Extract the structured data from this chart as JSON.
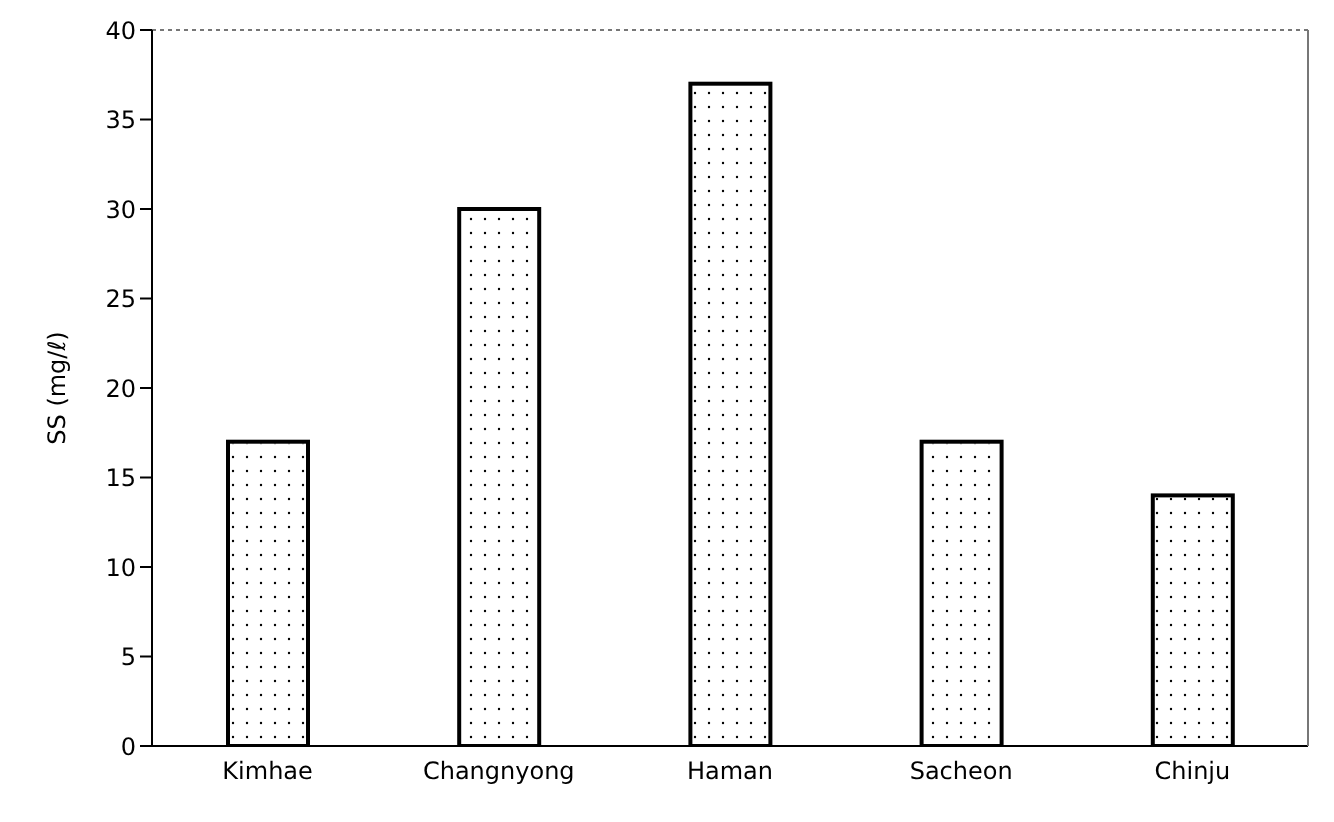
{
  "chart_data": {
    "type": "bar",
    "ylabel": "SS (mg/ℓ)",
    "categories": [
      "Kimhae",
      "Changnyong",
      "Haman",
      "Sacheon",
      "Chinju"
    ],
    "values": [
      17,
      30,
      37,
      17,
      14
    ],
    "color": "#ffffff",
    "ylim": [
      0,
      40
    ],
    "yticks": [
      0,
      5,
      10,
      15,
      20,
      25,
      30,
      35,
      40
    ],
    "grid": false,
    "legend": false
  }
}
